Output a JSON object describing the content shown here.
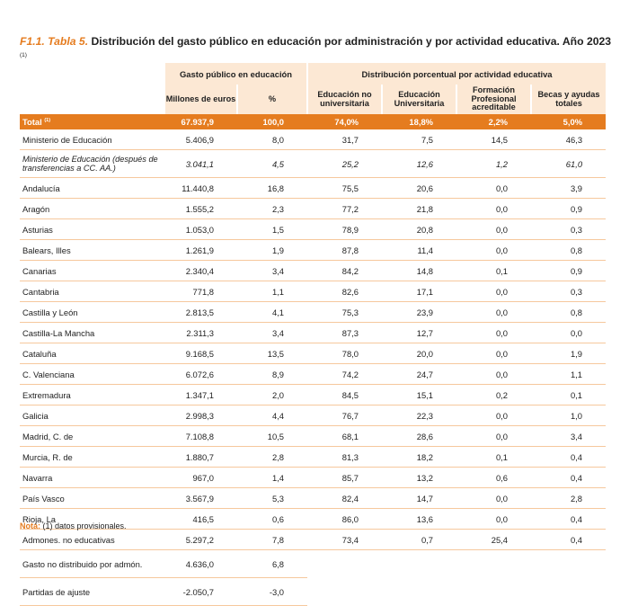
{
  "title": {
    "code": "F1.1. Tabla 5.",
    "text": " Distribución del gasto público en educación por administración y por actividad educativa. Año 2023",
    "sup": "(1)"
  },
  "headers": {
    "group1": "Gasto público en educación",
    "group2": "Distribución porcentual por actividad educativa",
    "c1": "Millones de euros",
    "c2": "%",
    "c3": "Educación no universitaria",
    "c4": "Educación Universitaria",
    "c5": "Formación Profesional acreditable",
    "c6": "Becas y ayudas totales"
  },
  "total": {
    "label": "Total",
    "sup": "(1)",
    "values": [
      "67.937,9",
      "100,0",
      "74,0%",
      "18,8%",
      "2,2%",
      "5,0%"
    ]
  },
  "rows": [
    {
      "label": "Ministerio de Educación",
      "values": [
        "5.406,9",
        "8,0",
        "31,7",
        "7,5",
        "14,5",
        "46,3"
      ]
    },
    {
      "label": "Ministerio de Educación (después de transferencias a CC. AA.)",
      "values": [
        "3.041,1",
        "4,5",
        "25,2",
        "12,6",
        "1,2",
        "61,0"
      ]
    },
    {
      "label": "Andalucía",
      "values": [
        "11.440,8",
        "16,8",
        "75,5",
        "20,6",
        "0,0",
        "3,9"
      ]
    },
    {
      "label": "Aragón",
      "values": [
        "1.555,2",
        "2,3",
        "77,2",
        "21,8",
        "0,0",
        "0,9"
      ]
    },
    {
      "label": "Asturias",
      "values": [
        "1.053,0",
        "1,5",
        "78,9",
        "20,8",
        "0,0",
        "0,3"
      ]
    },
    {
      "label": "Balears, Illes",
      "values": [
        "1.261,9",
        "1,9",
        "87,8",
        "11,4",
        "0,0",
        "0,8"
      ]
    },
    {
      "label": "Canarias",
      "values": [
        "2.340,4",
        "3,4",
        "84,2",
        "14,8",
        "0,1",
        "0,9"
      ]
    },
    {
      "label": "Cantabria",
      "values": [
        "771,8",
        "1,1",
        "82,6",
        "17,1",
        "0,0",
        "0,3"
      ]
    },
    {
      "label": "Castilla y León",
      "values": [
        "2.813,5",
        "4,1",
        "75,3",
        "23,9",
        "0,0",
        "0,8"
      ]
    },
    {
      "label": "Castilla-La Mancha",
      "values": [
        "2.311,3",
        "3,4",
        "87,3",
        "12,7",
        "0,0",
        "0,0"
      ]
    },
    {
      "label": "Cataluña",
      "values": [
        "9.168,5",
        "13,5",
        "78,0",
        "20,0",
        "0,0",
        "1,9"
      ]
    },
    {
      "label": "C. Valenciana",
      "values": [
        "6.072,6",
        "8,9",
        "74,2",
        "24,7",
        "0,0",
        "1,1"
      ]
    },
    {
      "label": "Extremadura",
      "values": [
        "1.347,1",
        "2,0",
        "84,5",
        "15,1",
        "0,2",
        "0,1"
      ]
    },
    {
      "label": "Galicia",
      "values": [
        "2.998,3",
        "4,4",
        "76,7",
        "22,3",
        "0,0",
        "1,0"
      ]
    },
    {
      "label": "Madrid, C. de",
      "values": [
        "7.108,8",
        "10,5",
        "68,1",
        "28,6",
        "0,0",
        "3,4"
      ]
    },
    {
      "label": "Murcia, R. de",
      "values": [
        "1.880,7",
        "2,8",
        "81,3",
        "18,2",
        "0,1",
        "0,4"
      ]
    },
    {
      "label": "Navarra",
      "values": [
        "967,0",
        "1,4",
        "85,7",
        "13,2",
        "0,6",
        "0,4"
      ]
    },
    {
      "label": "País Vasco",
      "values": [
        "3.567,9",
        "5,3",
        "82,4",
        "14,7",
        "0,0",
        "2,8"
      ]
    },
    {
      "label": "Rioja, La",
      "values": [
        "416,5",
        "0,6",
        "86,0",
        "13,6",
        "0,0",
        "0,4"
      ]
    },
    {
      "label": "Admones. no educativas",
      "values": [
        "5.297,2",
        "7,8",
        "73,4",
        "0,7",
        "25,4",
        "0,4"
      ]
    }
  ],
  "extra_rows": [
    {
      "label": "Gasto no distribuido por admón.",
      "values": [
        "4.636,0",
        "6,8"
      ]
    },
    {
      "label": "Partidas de ajuste",
      "values": [
        "-2.050,7",
        "-3,0"
      ]
    }
  ],
  "note": {
    "prefix": "Nota:",
    "text": " (1) datos provisionales."
  },
  "colors": {
    "accent": "#e57c1f",
    "header_bg": "#fce8d4",
    "row_border": "#f6c89d"
  }
}
